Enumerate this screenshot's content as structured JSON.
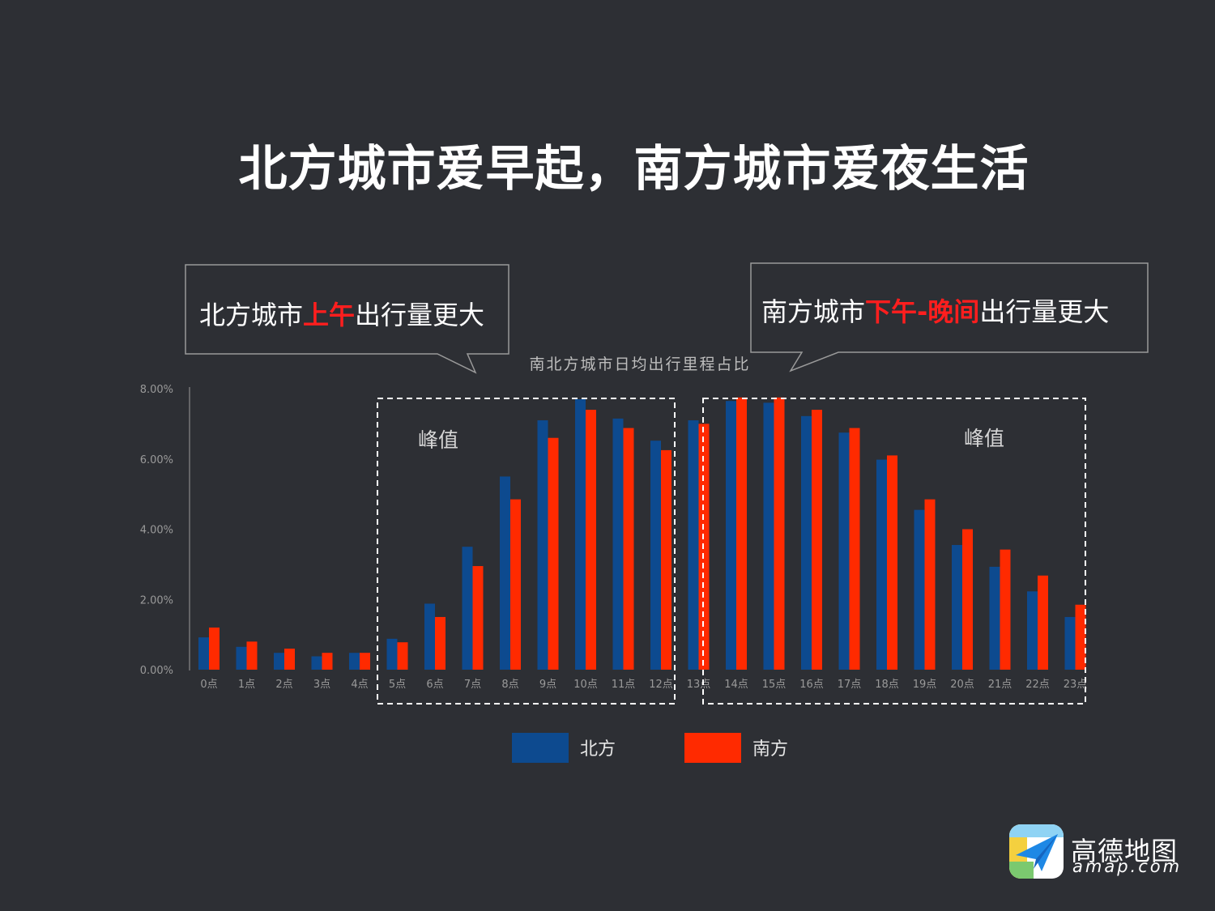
{
  "title": "北方城市爱早起，南方城市爱夜生活",
  "callout_left": {
    "pre": "北方城市",
    "highlight": "上午",
    "post": "出行量更大"
  },
  "callout_right": {
    "pre": "南方城市",
    "highlight": "下午-晚间",
    "post": "出行量更大"
  },
  "peak_labels": [
    "峰值",
    "峰值"
  ],
  "brand": {
    "name": "高德地图",
    "url": "amap.com"
  },
  "colors": {
    "north": "#0d4a8f",
    "south": "#ff2a00",
    "background": "#2d2f34",
    "highlight": "#ff1e1e"
  },
  "chart_data": {
    "type": "bar",
    "title": "南北方城市日均出行里程占比",
    "categories": [
      "0点",
      "1点",
      "2点",
      "3点",
      "4点",
      "5点",
      "6点",
      "7点",
      "8点",
      "9点",
      "10点",
      "11点",
      "12点",
      "13点",
      "14点",
      "15点",
      "16点",
      "17点",
      "18点",
      "19点",
      "20点",
      "21点",
      "22点",
      "23点"
    ],
    "series": [
      {
        "name": "北方",
        "values": [
          0.92,
          0.65,
          0.48,
          0.38,
          0.48,
          0.88,
          1.88,
          3.5,
          5.5,
          7.1,
          7.7,
          7.15,
          6.52,
          7.1,
          7.65,
          7.6,
          7.22,
          6.75,
          5.98,
          4.55,
          3.55,
          2.93,
          2.23,
          1.5
        ]
      },
      {
        "name": "南方",
        "values": [
          1.2,
          0.8,
          0.6,
          0.48,
          0.48,
          0.78,
          1.5,
          2.95,
          4.85,
          6.6,
          7.4,
          6.88,
          6.25,
          7.0,
          7.75,
          7.75,
          7.4,
          6.88,
          6.1,
          4.85,
          4.0,
          3.42,
          2.68,
          1.85
        ]
      }
    ],
    "yticks": [
      "0.00%",
      "2.00%",
      "4.00%",
      "6.00%",
      "8.00%"
    ],
    "ylim": [
      0,
      8
    ],
    "legend": "bottom",
    "grid": false
  }
}
